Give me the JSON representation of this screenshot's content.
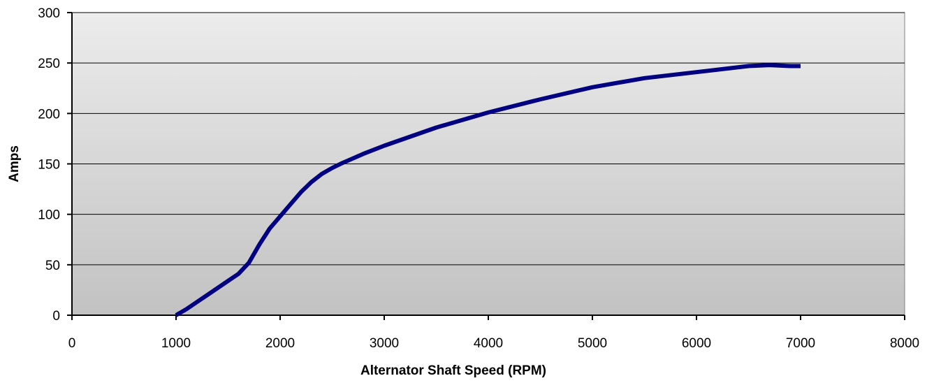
{
  "chart_data": {
    "type": "line",
    "title": "",
    "xlabel": "Alternator Shaft Speed (RPM)",
    "ylabel": "Amps",
    "xlim": [
      0,
      8000
    ],
    "ylim": [
      0,
      300
    ],
    "x_ticks": [
      0,
      1000,
      2000,
      3000,
      4000,
      5000,
      6000,
      7000,
      8000
    ],
    "y_ticks": [
      0,
      50,
      100,
      150,
      200,
      250,
      300
    ],
    "grid": "horizontal",
    "legend": "none",
    "series": [
      {
        "color": "#000080",
        "points": [
          [
            1000,
            0
          ],
          [
            1100,
            6
          ],
          [
            1200,
            13
          ],
          [
            1300,
            20
          ],
          [
            1400,
            27
          ],
          [
            1500,
            34
          ],
          [
            1600,
            41
          ],
          [
            1700,
            52
          ],
          [
            1800,
            70
          ],
          [
            1900,
            86
          ],
          [
            2000,
            98
          ],
          [
            2100,
            110
          ],
          [
            2200,
            122
          ],
          [
            2300,
            132
          ],
          [
            2400,
            140
          ],
          [
            2500,
            146
          ],
          [
            2600,
            151
          ],
          [
            2800,
            160
          ],
          [
            3000,
            168
          ],
          [
            3500,
            186
          ],
          [
            4000,
            201
          ],
          [
            4500,
            214
          ],
          [
            5000,
            226
          ],
          [
            5500,
            235
          ],
          [
            6000,
            241
          ],
          [
            6500,
            247
          ],
          [
            6700,
            248
          ],
          [
            6900,
            247
          ],
          [
            7000,
            247
          ]
        ]
      }
    ]
  }
}
